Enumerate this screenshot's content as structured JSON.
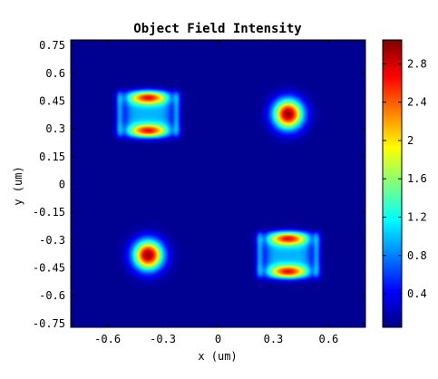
{
  "chart_data": {
    "type": "heatmap",
    "title": "Object Field Intensity",
    "xlabel": "x (um)",
    "ylabel": "y (um)",
    "xlim": [
      -0.8,
      0.8
    ],
    "ylim": [
      -0.77,
      0.78
    ],
    "x_ticks": [
      "-0.6",
      "-0.3",
      "0",
      "0.3",
      "0.6"
    ],
    "x_tick_values": [
      -0.6,
      -0.3,
      0,
      0.3,
      0.6
    ],
    "y_ticks": [
      "0.75",
      "0.6",
      "0.45",
      "0.3",
      "0.15",
      "0",
      "-0.15",
      "-0.3",
      "-0.45",
      "-0.6",
      "-0.75"
    ],
    "y_tick_values": [
      0.75,
      0.6,
      0.45,
      0.3,
      0.15,
      0,
      -0.15,
      -0.3,
      -0.45,
      -0.6,
      -0.75
    ],
    "colorbar": {
      "colormap": "jet",
      "range": [
        0.05,
        3.05
      ],
      "ticks": [
        "2.8",
        "2.4",
        "2",
        "1.6",
        "1.2",
        "0.8",
        "0.4"
      ],
      "tick_values": [
        2.8,
        2.4,
        2.0,
        1.6,
        1.2,
        0.8,
        0.4
      ]
    },
    "features": [
      {
        "kind": "double-lobe",
        "center_x": -0.38,
        "center_y": 0.38,
        "peak": 1.9
      },
      {
        "kind": "spot",
        "center_x": 0.38,
        "center_y": 0.38,
        "peak": 3.0
      },
      {
        "kind": "spot",
        "center_x": -0.38,
        "center_y": -0.38,
        "peak": 3.0
      },
      {
        "kind": "double-lobe",
        "center_x": 0.38,
        "center_y": -0.38,
        "peak": 1.9
      }
    ],
    "background_value": 0.1
  }
}
